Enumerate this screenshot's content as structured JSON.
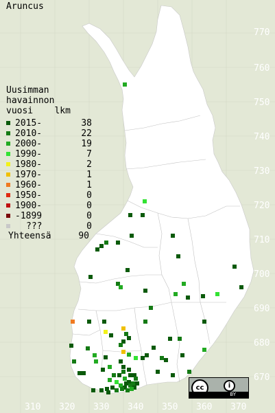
{
  "title": "Aruncus",
  "legend": {
    "heading": [
      "Uusimman",
      "havainnon",
      "vuosi"
    ],
    "count_heading": "lkm",
    "items": [
      {
        "label": "2015-",
        "count": "38",
        "color": "#0b5a0b"
      },
      {
        "label": "2010-",
        "count": "22",
        "color": "#147a14"
      },
      {
        "label": "2000-",
        "count": "19",
        "color": "#22aa22"
      },
      {
        "label": "1990-",
        "count": "7",
        "color": "#33e233"
      },
      {
        "label": "1980-",
        "count": "2",
        "color": "#f2f21a"
      },
      {
        "label": "1970-",
        "count": "1",
        "color": "#f0c000"
      },
      {
        "label": "1960-",
        "count": "1",
        "color": "#f07a20"
      },
      {
        "label": "1950-",
        "count": "0",
        "color": "#e02a10"
      },
      {
        "label": "1900-",
        "count": "0",
        "color": "#c01010"
      },
      {
        "label": "-1899",
        "count": "0",
        "color": "#7a0a0a"
      },
      {
        "label": "???",
        "count": "0",
        "color": "#c8c8c8"
      }
    ],
    "total_label": "Yhteensä",
    "total_count": "90"
  },
  "y_axis": [
    "770",
    "760",
    "750",
    "740",
    "730",
    "720",
    "710",
    "700",
    "690",
    "680",
    "670"
  ],
  "x_axis": [
    "310",
    "320",
    "330",
    "340",
    "350",
    "360",
    "370"
  ],
  "license": {
    "cc": "cc",
    "by": "BY"
  }
}
